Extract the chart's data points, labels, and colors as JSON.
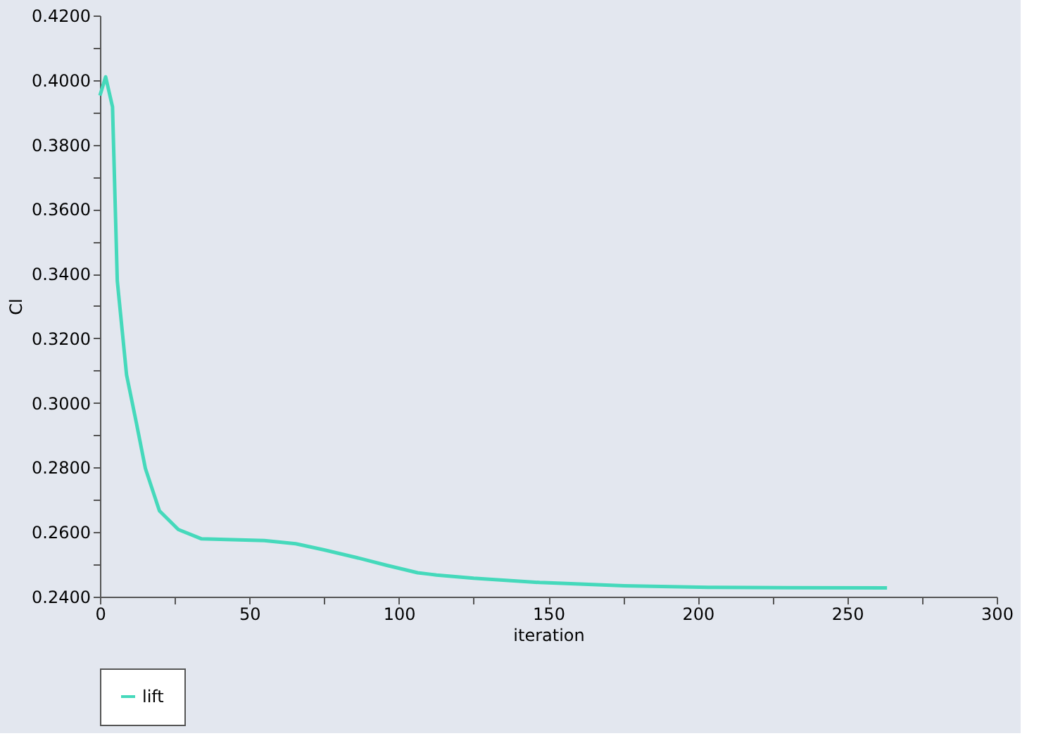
{
  "chart_data": {
    "type": "line",
    "xlabel": "iteration",
    "ylabel": "Cl",
    "x": [
      0,
      1.9,
      4.2,
      5.8,
      8.9,
      12.1,
      15.2,
      19.9,
      26.2,
      34,
      46.6,
      55,
      65.5,
      75,
      85.9,
      96,
      106.3,
      110,
      112.6,
      125,
      147.1,
      175.3,
      203.6,
      230,
      263.3
    ],
    "series": [
      {
        "name": "lift",
        "color": "#45d9bb",
        "values": [
          0.3952,
          0.401,
          0.3917,
          0.3378,
          0.3087,
          0.2942,
          0.2797,
          0.2666,
          0.2608,
          0.2579,
          0.2576,
          0.2574,
          0.2564,
          0.2545,
          0.2521,
          0.2497,
          0.2474,
          0.247,
          0.2467,
          0.2457,
          0.2444,
          0.2434,
          0.2429,
          0.2428,
          0.2427
        ]
      }
    ],
    "xlim": [
      0,
      300
    ],
    "ylim": [
      0.24,
      0.42
    ],
    "xticks": [
      0,
      {
        "value": 25,
        "label": null
      },
      50,
      {
        "value": 75,
        "label": null
      },
      100,
      {
        "value": 125,
        "label": null
      },
      150,
      {
        "value": 175,
        "label": null
      },
      200,
      {
        "value": 225,
        "label": null
      },
      250,
      {
        "value": 275,
        "label": null
      },
      300
    ],
    "yticks": [
      {
        "value": 0.24,
        "label": "0.2400"
      },
      {
        "value": 0.25,
        "label": null
      },
      {
        "value": 0.26,
        "label": "0.2600"
      },
      {
        "value": 0.27,
        "label": null
      },
      {
        "value": 0.28,
        "label": "0.2800"
      },
      {
        "value": 0.29,
        "label": null
      },
      {
        "value": 0.3,
        "label": "0.3000"
      },
      {
        "value": 0.31,
        "label": null
      },
      {
        "value": 0.32,
        "label": "0.3200"
      },
      {
        "value": 0.33,
        "label": null
      },
      {
        "value": 0.34,
        "label": "0.3400"
      },
      {
        "value": 0.35,
        "label": null
      },
      {
        "value": 0.36,
        "label": "0.3600"
      },
      {
        "value": 0.37,
        "label": null
      },
      {
        "value": 0.38,
        "label": "0.3800"
      },
      {
        "value": 0.39,
        "label": null
      },
      {
        "value": 0.4,
        "label": "0.4000"
      },
      {
        "value": 0.41,
        "label": null
      },
      {
        "value": 0.42,
        "label": "0.4200"
      }
    ],
    "grid": false,
    "legend": "bottom",
    "marker": "none",
    "line_style": "solid"
  }
}
